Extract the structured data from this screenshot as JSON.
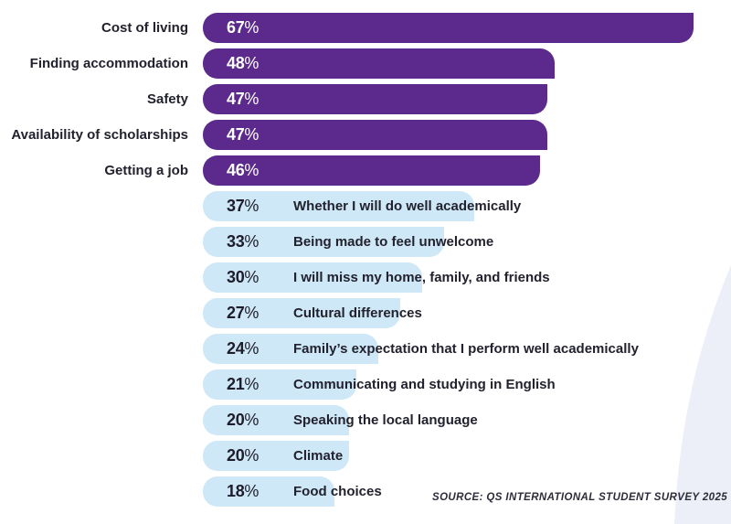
{
  "chart_data": {
    "type": "bar",
    "orientation": "horizontal",
    "title": "",
    "xlabel": "",
    "ylabel": "",
    "xlim": [
      0,
      67
    ],
    "grid": false,
    "value_suffix": "%",
    "categories": [
      "Cost of living",
      "Finding accommodation",
      "Safety",
      "Availability of scholarships",
      "Getting a job",
      "Whether I will do well academically",
      "Being made to feel unwelcome",
      "I will miss my home, family, and friends",
      "Cultural differences",
      "Family’s expectation that I perform well academically",
      "Communicating and studying in English",
      "Speaking the local language",
      "Climate",
      "Food choices"
    ],
    "values": [
      67,
      48,
      47,
      47,
      46,
      37,
      33,
      30,
      27,
      24,
      21,
      20,
      20,
      18
    ],
    "highlight_top_n": 5,
    "colors": {
      "top": "#5b2a8c",
      "rest": "#cfe8f7"
    },
    "source": "SOURCE: QS INTERNATIONAL STUDENT SURVEY 2025"
  }
}
